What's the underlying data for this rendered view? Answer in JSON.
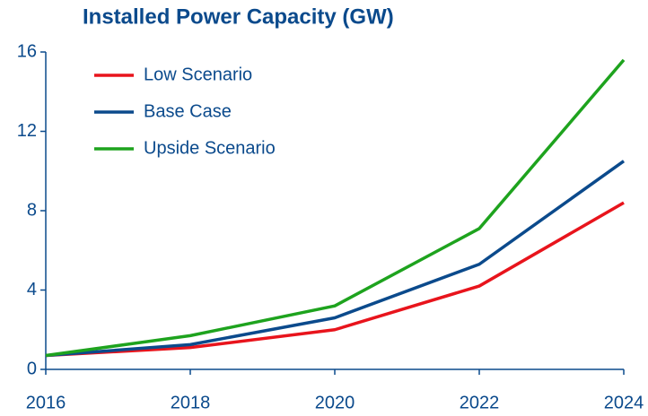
{
  "chart_data": {
    "type": "line",
    "title": "Installed Power Capacity (GW)",
    "x": [
      2016,
      2018,
      2020,
      2022,
      2024
    ],
    "series": [
      {
        "name": "Low Scenario",
        "color": "#e8141c",
        "values": [
          0.7,
          1.1,
          2.0,
          4.2,
          8.4
        ]
      },
      {
        "name": "Base Case",
        "color": "#0b4a8c",
        "values": [
          0.7,
          1.25,
          2.6,
          5.3,
          10.5
        ]
      },
      {
        "name": "Upside Scenario",
        "color": "#1ea31e",
        "values": [
          0.7,
          1.7,
          3.2,
          7.1,
          15.6
        ]
      }
    ],
    "xlim": [
      2016,
      2024
    ],
    "xticks": [
      2016,
      2018,
      2020,
      2022,
      2024
    ],
    "ylim": [
      0,
      16
    ],
    "yticks": [
      0,
      4,
      8,
      12,
      16
    ],
    "grid": false,
    "legend": "upper left"
  }
}
